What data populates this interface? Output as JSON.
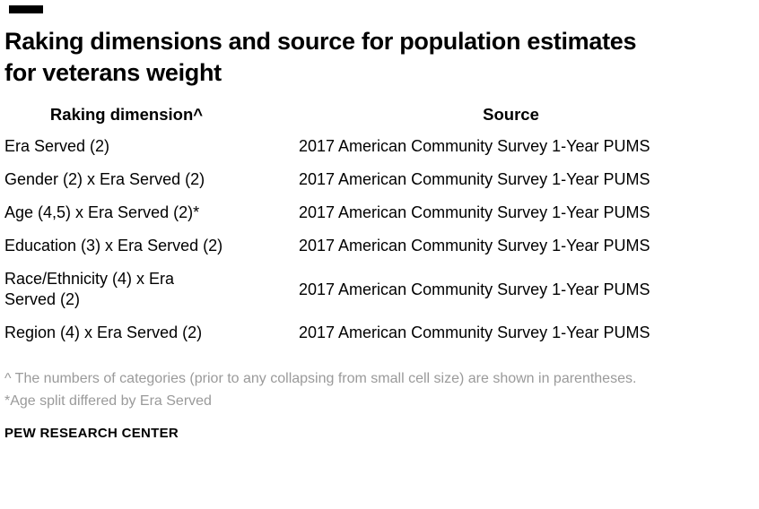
{
  "meta": {
    "accent_color": "#000000",
    "footnote_color": "#9a9a9a",
    "background_color": "#ffffff"
  },
  "title": "Raking dimensions and source for population estimates for veterans weight",
  "table": {
    "col_headers": [
      "Raking dimension^",
      "Source"
    ],
    "rows": [
      {
        "dimension": "Era Served (2)",
        "source": "2017 American Community Survey 1-Year PUMS"
      },
      {
        "dimension": "Gender (2) x Era Served (2)",
        "source": "2017 American Community Survey 1-Year PUMS"
      },
      {
        "dimension": "Age (4,5) x Era Served (2)*",
        "source": "2017 American Community Survey 1-Year PUMS"
      },
      {
        "dimension": "Education (3) x Era Served (2)",
        "source": "2017 American Community Survey 1-Year PUMS"
      },
      {
        "dimension": "Race/Ethnicity (4) x Era Served (2)",
        "source": "2017 American Community Survey 1-Year PUMS"
      },
      {
        "dimension": "Region (4) x Era Served (2)",
        "source": "2017 American Community Survey 1-Year PUMS"
      }
    ]
  },
  "footnotes": [
    "^ The numbers of categories (prior to any collapsing from small cell size) are shown in parentheses.",
    "*Age split differed by Era Served"
  ],
  "branding": "PEW RESEARCH CENTER",
  "chart_data": {
    "type": "table",
    "title": "Raking dimensions and source for population estimates for veterans weight",
    "columns": [
      "Raking dimension^",
      "Source"
    ],
    "rows": [
      [
        "Era Served (2)",
        "2017 American Community Survey 1-Year PUMS"
      ],
      [
        "Gender (2) x Era Served (2)",
        "2017 American Community Survey 1-Year PUMS"
      ],
      [
        "Age (4,5) x Era Served (2)*",
        "2017 American Community Survey 1-Year PUMS"
      ],
      [
        "Education (3) x Era Served (2)",
        "2017 American Community Survey 1-Year PUMS"
      ],
      [
        "Race/Ethnicity (4) x Era Served (2)",
        "2017 American Community Survey 1-Year PUMS"
      ],
      [
        "Region (4) x Era Served (2)",
        "2017 American Community Survey 1-Year PUMS"
      ]
    ],
    "notes": [
      "^ The numbers of categories (prior to any collapsing from small cell size) are shown in parentheses.",
      "*Age split differed by Era Served"
    ],
    "source": "PEW RESEARCH CENTER"
  }
}
